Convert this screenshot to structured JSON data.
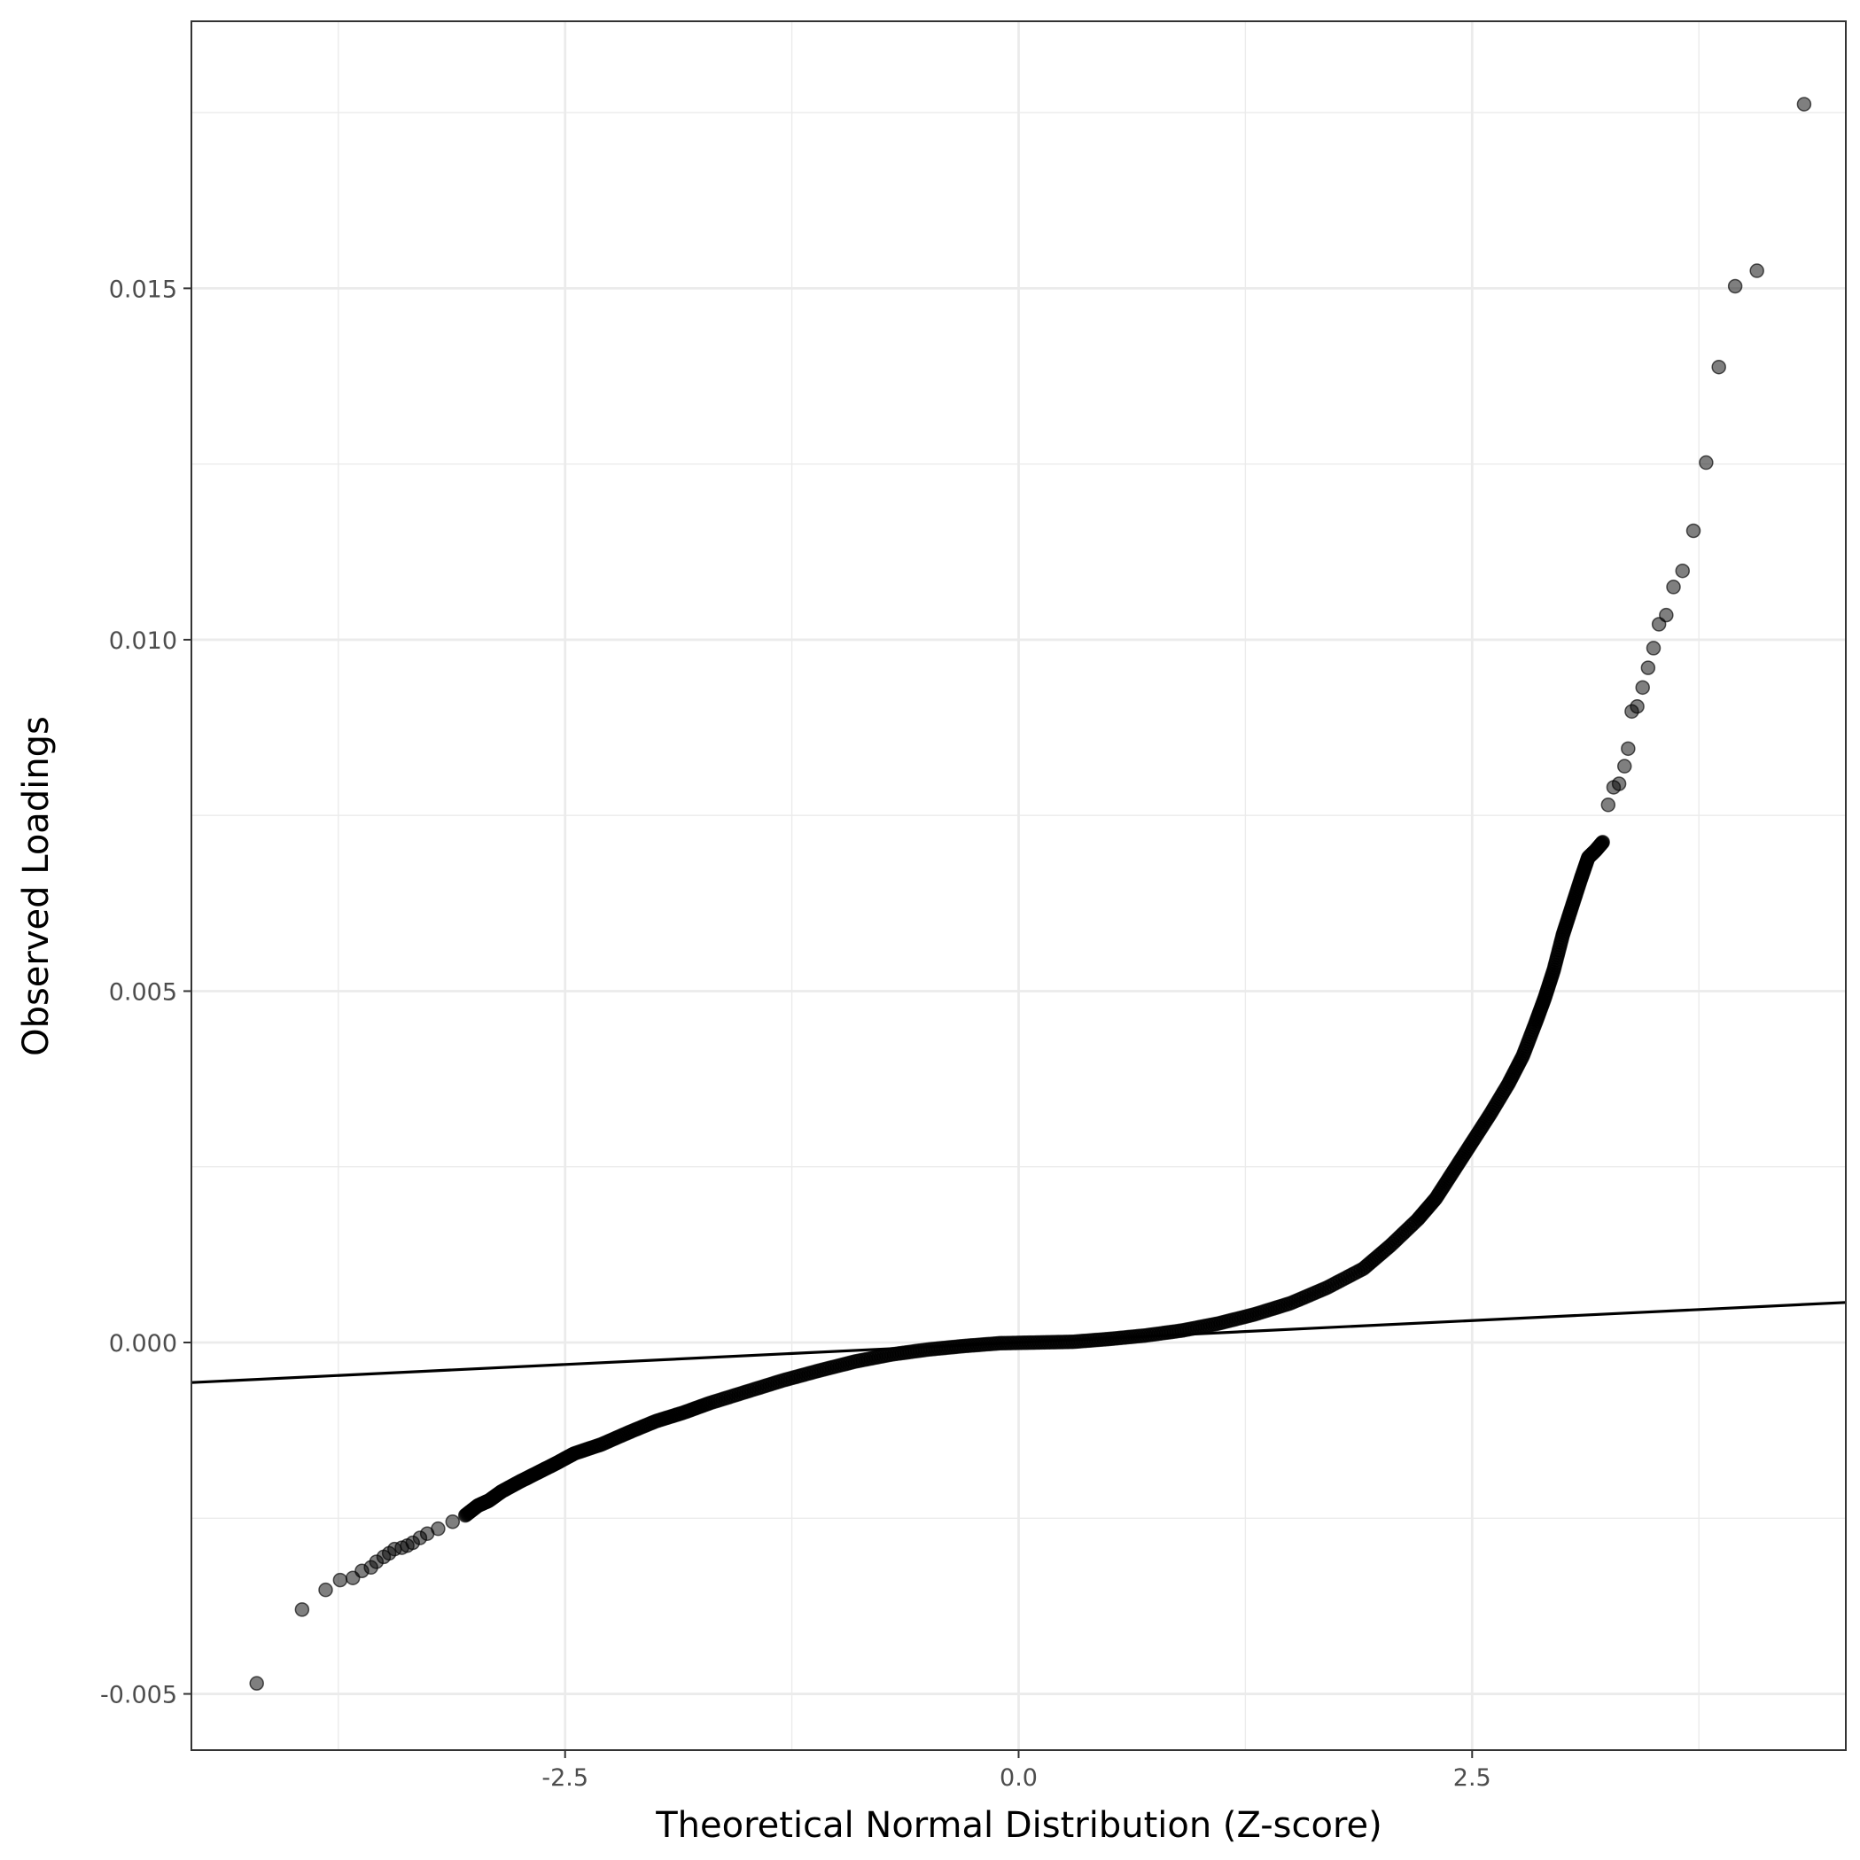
{
  "chart_data": {
    "type": "scatter",
    "xlabel": "Theoretical Normal Distribution (Z-score)",
    "ylabel": "Observed Loadings",
    "xlim": [
      -4.56,
      4.56
    ],
    "ylim": [
      -0.0058,
      0.0188
    ],
    "x_ticks": [
      -2.5,
      0.0,
      2.5
    ],
    "x_tick_labels": [
      "-2.5",
      "0.0",
      "2.5"
    ],
    "y_ticks": [
      -0.005,
      0.0,
      0.005,
      0.01,
      0.015
    ],
    "y_tick_labels": [
      "-0.005",
      "0.000",
      "0.005",
      "0.010",
      "0.015"
    ],
    "grid": true,
    "legend": "none",
    "reference_line": {
      "slope": 0.000125,
      "intercept": 0.0
    },
    "point_color": "#000000",
    "point_opacity": 0.5,
    "series": [
      {
        "points": [
          [
            -4.2,
            -0.00485
          ],
          [
            -3.95,
            -0.0038
          ],
          [
            -3.82,
            -0.00352
          ],
          [
            -3.74,
            -0.00338
          ],
          [
            -3.67,
            -0.00335
          ],
          [
            -3.62,
            -0.00325
          ],
          [
            -3.57,
            -0.0032
          ],
          [
            -3.54,
            -0.00312
          ],
          [
            -3.5,
            -0.00305
          ],
          [
            -3.47,
            -0.003
          ],
          [
            -3.44,
            -0.00294
          ],
          [
            -3.4,
            -0.00292
          ],
          [
            -3.37,
            -0.00289
          ],
          [
            -3.34,
            -0.00285
          ],
          [
            -3.3,
            -0.00278
          ],
          [
            -3.26,
            -0.00272
          ],
          [
            -3.2,
            -0.00265
          ],
          [
            -3.12,
            -0.00255
          ],
          [
            -3.05,
            -0.00246
          ],
          [
            -2.98,
            -0.00232
          ],
          [
            -2.92,
            -0.00225
          ],
          [
            -2.85,
            -0.00212
          ],
          [
            -2.75,
            -0.00198
          ],
          [
            -2.65,
            -0.00185
          ],
          [
            -2.55,
            -0.00172
          ],
          [
            -2.45,
            -0.00158
          ],
          [
            -2.3,
            -0.00145
          ],
          [
            -2.15,
            -0.00128
          ],
          [
            -2.0,
            -0.00112
          ],
          [
            -1.85,
            -0.001
          ],
          [
            -1.7,
            -0.00086
          ],
          [
            -1.5,
            -0.0007
          ],
          [
            -1.3,
            -0.00054
          ],
          [
            -1.1,
            -0.0004
          ],
          [
            -0.9,
            -0.00027
          ],
          [
            -0.7,
            -0.00017
          ],
          [
            -0.5,
            -0.0001
          ],
          [
            -0.3,
            -5e-05
          ],
          [
            -0.1,
            -1e-05
          ],
          [
            0.1,
            0.0
          ],
          [
            0.3,
            1e-05
          ],
          [
            0.5,
            5e-05
          ],
          [
            0.7,
            0.0001
          ],
          [
            0.9,
            0.00017
          ],
          [
            1.1,
            0.00027
          ],
          [
            1.3,
            0.0004
          ],
          [
            1.5,
            0.00056
          ],
          [
            1.7,
            0.00078
          ],
          [
            1.9,
            0.00105
          ],
          [
            2.05,
            0.00138
          ],
          [
            2.2,
            0.00175
          ],
          [
            2.3,
            0.00205
          ],
          [
            2.4,
            0.00245
          ],
          [
            2.5,
            0.00285
          ],
          [
            2.6,
            0.00325
          ],
          [
            2.7,
            0.00368
          ],
          [
            2.78,
            0.00408
          ],
          [
            2.85,
            0.00455
          ],
          [
            2.9,
            0.0049
          ],
          [
            2.95,
            0.0053
          ],
          [
            3.0,
            0.0058
          ],
          [
            3.05,
            0.0062
          ],
          [
            3.1,
            0.0066
          ],
          [
            3.14,
            0.0069
          ],
          [
            3.18,
            0.007
          ],
          [
            3.22,
            0.00712
          ],
          [
            3.25,
            0.00765
          ],
          [
            3.28,
            0.0079
          ],
          [
            3.31,
            0.00795
          ],
          [
            3.34,
            0.0082
          ],
          [
            3.36,
            0.00845
          ],
          [
            3.38,
            0.00898
          ],
          [
            3.41,
            0.00905
          ],
          [
            3.44,
            0.00932
          ],
          [
            3.47,
            0.0096
          ],
          [
            3.5,
            0.00988
          ],
          [
            3.53,
            0.01022
          ],
          [
            3.57,
            0.01035
          ],
          [
            3.61,
            0.01075
          ],
          [
            3.66,
            0.01098
          ],
          [
            3.72,
            0.01155
          ],
          [
            3.79,
            0.01252
          ],
          [
            3.86,
            0.01388
          ],
          [
            3.95,
            0.01503
          ],
          [
            4.07,
            0.01525
          ],
          [
            4.33,
            0.01762
          ]
        ]
      }
    ]
  }
}
